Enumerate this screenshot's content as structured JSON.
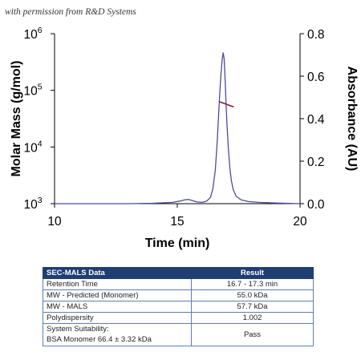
{
  "permission_text": "with permission from R&D Systems",
  "chart_data": {
    "type": "line",
    "xlabel": "Time (min)",
    "ylabel_left": "Molar Mass (g/mol)",
    "ylabel_right": "Absorbance (AU)",
    "xlim": [
      10,
      20
    ],
    "x_ticks": [
      "10",
      "15",
      "20"
    ],
    "y_left_scale": "log",
    "y_left_lim": [
      1000,
      1000000
    ],
    "y_left_ticks": [
      {
        "base": "10",
        "exp": "3"
      },
      {
        "base": "10",
        "exp": "4"
      },
      {
        "base": "10",
        "exp": "5"
      },
      {
        "base": "10",
        "exp": "6"
      }
    ],
    "y_right_lim": [
      0.0,
      0.8
    ],
    "y_right_ticks": [
      "0.0",
      "0.2",
      "0.4",
      "0.6",
      "0.8"
    ],
    "series": [
      {
        "kind": "absorbance",
        "axis": "right",
        "color": "#4b4ba0",
        "x": [
          10.0,
          11.0,
          12.0,
          13.0,
          14.0,
          14.8,
          15.1,
          15.3,
          15.45,
          15.6,
          15.8,
          16.0,
          16.2,
          16.35,
          16.45,
          16.55,
          16.62,
          16.68,
          16.73,
          16.78,
          16.83,
          16.87,
          16.91,
          16.95,
          16.99,
          17.03,
          17.08,
          17.14,
          17.2,
          17.28,
          17.4,
          17.6,
          17.9,
          18.3,
          19.0,
          20.0
        ],
        "y": [
          0.0,
          0.0,
          0.0,
          0.0,
          0.002,
          0.006,
          0.012,
          0.018,
          0.02,
          0.015,
          0.008,
          0.006,
          0.012,
          0.03,
          0.07,
          0.16,
          0.28,
          0.41,
          0.52,
          0.61,
          0.68,
          0.71,
          0.68,
          0.58,
          0.46,
          0.36,
          0.26,
          0.17,
          0.11,
          0.065,
          0.035,
          0.018,
          0.01,
          0.006,
          0.003,
          0.0
        ]
      },
      {
        "kind": "molar_mass",
        "axis": "left",
        "color": "#8b2030",
        "x": [
          16.72,
          17.3
        ],
        "y": [
          63000,
          51000
        ]
      }
    ]
  },
  "table": {
    "headers": [
      "SEC-MALS Data",
      "Result"
    ],
    "rows": [
      {
        "label": "Retention Time",
        "value": "16.7 - 17.3 min"
      },
      {
        "label": "MW - Predicted (Monomer)",
        "value": "55.0 kDa"
      },
      {
        "label": "MW - MALS",
        "value": "57.7 kDa"
      },
      {
        "label": "Polydispersity",
        "value": "1.002"
      },
      {
        "label": "System Suitability:",
        "label2": "BSA Monomer 66.4 ± 3.32 kDa",
        "value": "Pass"
      }
    ]
  }
}
